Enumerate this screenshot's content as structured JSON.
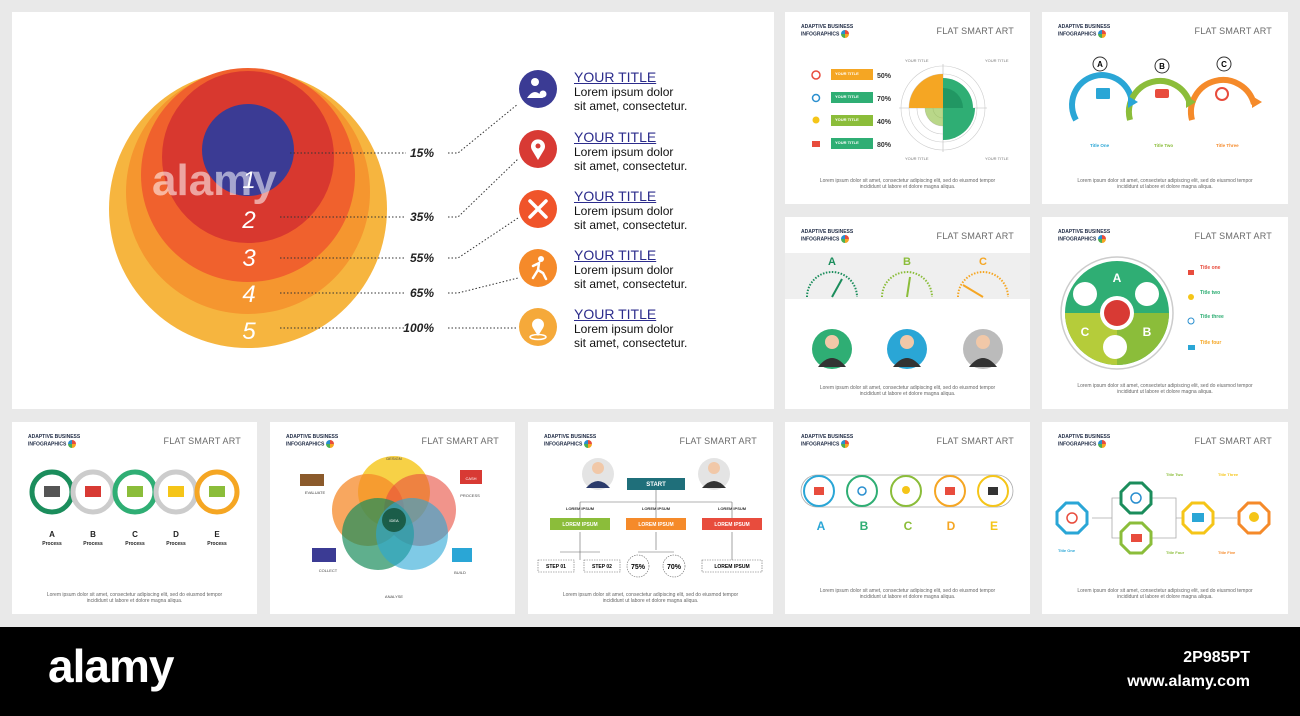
{
  "main": {
    "ring_labels": [
      "1",
      "2",
      "3",
      "4",
      "5"
    ],
    "percents": [
      "15%",
      "35%",
      "55%",
      "65%",
      "100%"
    ],
    "items": [
      {
        "title": "YOUR TITLE",
        "line1": "Lorem ipsum dolor",
        "line2": "sit amet, consectetur.",
        "icon": "person-dollar-icon",
        "color": "#3b3b94"
      },
      {
        "title": "YOUR TITLE",
        "line1": "Lorem ipsum dolor",
        "line2": "sit amet, consectetur.",
        "icon": "map-pin-icon",
        "color": "#d83a34"
      },
      {
        "title": "YOUR TITLE",
        "line1": "Lorem ipsum dolor",
        "line2": "sit amet, consectetur.",
        "icon": "tools-icon",
        "color": "#f0542a"
      },
      {
        "title": "YOUR TITLE",
        "line1": "Lorem ipsum dolor",
        "line2": "sit amet, consectetur.",
        "icon": "runner-icon",
        "color": "#f58a2a"
      },
      {
        "title": "YOUR TITLE",
        "line1": "Lorem ipsum dolor",
        "line2": "sit amet, consectetur.",
        "icon": "location-icon",
        "color": "#f5a93a"
      }
    ]
  },
  "common": {
    "brand_line1": "ADAPTIVE BUSINESS",
    "brand_line2": "INFOGRAPHICS",
    "slide_title": "FLAT SMART ART",
    "footer_line1": "Lorem ipsum dolor sit amet, consectetur adipiscing elit, sed do eiusmod tempor",
    "footer_line2": "incididunt ut labore et dolore magna aliqua."
  },
  "s2": {
    "bars": [
      {
        "label": "YOUR TITLE",
        "pct": "50%",
        "color": "#f5a623"
      },
      {
        "label": "YOUR TITLE",
        "pct": "70%",
        "color": "#2fae74"
      },
      {
        "label": "YOUR TITLE",
        "pct": "40%",
        "color": "#8bbd3a"
      },
      {
        "label": "YOUR TITLE",
        "pct": "80%",
        "color": "#2fae74"
      }
    ],
    "corner_label": "YOUR TITLE"
  },
  "s3": {
    "letters": [
      "A",
      "B",
      "C"
    ],
    "titles": [
      "Title One",
      "Title Two",
      "Title Three"
    ]
  },
  "s4": {
    "letters": [
      "A",
      "B",
      "C"
    ]
  },
  "s5": {
    "letters": [
      "A",
      "B",
      "C"
    ],
    "titles": [
      "Title one",
      "Title two",
      "Title three",
      "Title four"
    ]
  },
  "s6": {
    "letters": [
      "A",
      "B",
      "C",
      "D",
      "E"
    ],
    "labels": [
      "Process",
      "Process",
      "Process",
      "Process",
      "Process"
    ]
  },
  "s7": {
    "labels": {
      "design": "DESIGN",
      "evaluate": "EVALUATE",
      "process": "PROCESS",
      "collect": "COLLECT",
      "build": "BUILD",
      "analyse": "ANALYSE",
      "idea": "IDEA"
    },
    "cash": "CASH"
  },
  "s8": {
    "start": "START",
    "lorem": "LOREM IPSUM",
    "steps": [
      "STEP 01",
      "STEP 02"
    ],
    "pcts": [
      "75%",
      "70%"
    ]
  },
  "s9": {
    "letters": [
      "A",
      "B",
      "C",
      "D",
      "E"
    ]
  },
  "s10": {
    "titles": [
      "Title Two",
      "Title Three",
      "Title One",
      "Title Four",
      "Title Five",
      "Title Six"
    ]
  },
  "watermark": "alamy",
  "stock_id": "2P985PT",
  "stock_url": "www.alamy.com"
}
